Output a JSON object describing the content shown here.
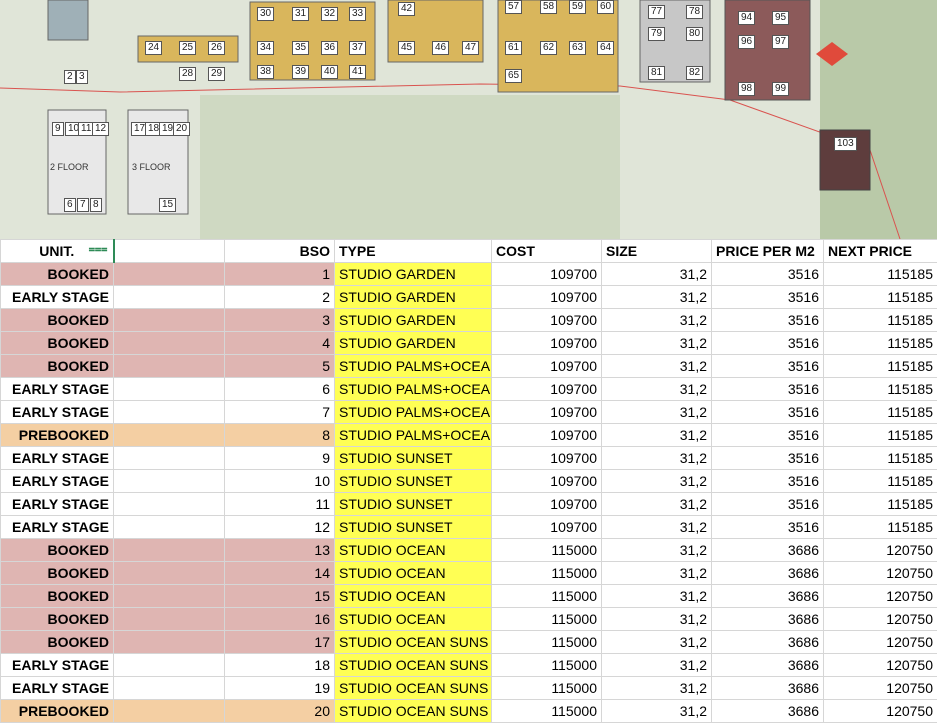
{
  "map": {
    "floor_labels": [
      "2 FLOOR",
      "3 FLOOR"
    ],
    "units": [
      "2",
      "3",
      "6",
      "7",
      "8",
      "9",
      "10",
      "11",
      "12",
      "15",
      "17",
      "18",
      "19",
      "20",
      "24",
      "25",
      "26",
      "28",
      "29",
      "30",
      "31",
      "32",
      "33",
      "34",
      "35",
      "36",
      "37",
      "38",
      "39",
      "40",
      "41",
      "42",
      "45",
      "46",
      "47",
      "57",
      "58",
      "59",
      "60",
      "61",
      "62",
      "63",
      "64",
      "65",
      "77",
      "78",
      "79",
      "80",
      "81",
      "82",
      "94",
      "95",
      "96",
      "97",
      "98",
      "99",
      "103"
    ]
  },
  "sheet": {
    "headers": {
      "unit": "UNIT.",
      "blank": "",
      "bso": "BSO",
      "type": "TYPE",
      "cost": "COST",
      "size": "SIZE",
      "price_m2": "PRICE PER M2",
      "next_price": "NEXT PRICE"
    },
    "status_colors": {
      "BOOKED": "#dfb5b2",
      "PREBOOKED": "#f4cfa3",
      "EARLY STAGE": "#ffffff",
      "type_highlight": "#ffff54"
    },
    "rows": [
      {
        "unit": "BOOKED",
        "bso": "1",
        "type": "STUDIO GARDEN",
        "cost": "109700",
        "size": "31,2",
        "price_m2": "3516",
        "next_price": "115185"
      },
      {
        "unit": "EARLY STAGE",
        "bso": "2",
        "type": "STUDIO GARDEN",
        "cost": "109700",
        "size": "31,2",
        "price_m2": "3516",
        "next_price": "115185"
      },
      {
        "unit": "BOOKED",
        "bso": "3",
        "type": "STUDIO GARDEN",
        "cost": "109700",
        "size": "31,2",
        "price_m2": "3516",
        "next_price": "115185"
      },
      {
        "unit": "BOOKED",
        "bso": "4",
        "type": "STUDIO GARDEN",
        "cost": "109700",
        "size": "31,2",
        "price_m2": "3516",
        "next_price": "115185"
      },
      {
        "unit": "BOOKED",
        "bso": "5",
        "type": "STUDIO PALMS+OCEA",
        "cost": "109700",
        "size": "31,2",
        "price_m2": "3516",
        "next_price": "115185"
      },
      {
        "unit": "EARLY STAGE",
        "bso": "6",
        "type": "STUDIO PALMS+OCEA",
        "cost": "109700",
        "size": "31,2",
        "price_m2": "3516",
        "next_price": "115185"
      },
      {
        "unit": "EARLY STAGE",
        "bso": "7",
        "type": "STUDIO PALMS+OCEA",
        "cost": "109700",
        "size": "31,2",
        "price_m2": "3516",
        "next_price": "115185"
      },
      {
        "unit": "PREBOOKED",
        "bso": "8",
        "type": "STUDIO PALMS+OCEA",
        "cost": "109700",
        "size": "31,2",
        "price_m2": "3516",
        "next_price": "115185"
      },
      {
        "unit": "EARLY STAGE",
        "bso": "9",
        "type": "STUDIO SUNSET",
        "cost": "109700",
        "size": "31,2",
        "price_m2": "3516",
        "next_price": "115185"
      },
      {
        "unit": "EARLY STAGE",
        "bso": "10",
        "type": "STUDIO SUNSET",
        "cost": "109700",
        "size": "31,2",
        "price_m2": "3516",
        "next_price": "115185"
      },
      {
        "unit": "EARLY STAGE",
        "bso": "11",
        "type": "STUDIO SUNSET",
        "cost": "109700",
        "size": "31,2",
        "price_m2": "3516",
        "next_price": "115185"
      },
      {
        "unit": "EARLY STAGE",
        "bso": "12",
        "type": "STUDIO SUNSET",
        "cost": "109700",
        "size": "31,2",
        "price_m2": "3516",
        "next_price": "115185"
      },
      {
        "unit": "BOOKED",
        "bso": "13",
        "type": "STUDIO OCEAN",
        "cost": "115000",
        "size": "31,2",
        "price_m2": "3686",
        "next_price": "120750"
      },
      {
        "unit": "BOOKED",
        "bso": "14",
        "type": "STUDIO OCEAN",
        "cost": "115000",
        "size": "31,2",
        "price_m2": "3686",
        "next_price": "120750"
      },
      {
        "unit": "BOOKED",
        "bso": "15",
        "type": "STUDIO OCEAN",
        "cost": "115000",
        "size": "31,2",
        "price_m2": "3686",
        "next_price": "120750"
      },
      {
        "unit": "BOOKED",
        "bso": "16",
        "type": "STUDIO OCEAN",
        "cost": "115000",
        "size": "31,2",
        "price_m2": "3686",
        "next_price": "120750"
      },
      {
        "unit": "BOOKED",
        "bso": "17",
        "type": "STUDIO OCEAN SUNS",
        "cost": "115000",
        "size": "31,2",
        "price_m2": "3686",
        "next_price": "120750"
      },
      {
        "unit": "EARLY STAGE",
        "bso": "18",
        "type": "STUDIO OCEAN SUNS",
        "cost": "115000",
        "size": "31,2",
        "price_m2": "3686",
        "next_price": "120750"
      },
      {
        "unit": "EARLY STAGE",
        "bso": "19",
        "type": "STUDIO OCEAN SUNS",
        "cost": "115000",
        "size": "31,2",
        "price_m2": "3686",
        "next_price": "120750"
      },
      {
        "unit": "PREBOOKED",
        "bso": "20",
        "type": "STUDIO OCEAN SUNS",
        "cost": "115000",
        "size": "31,2",
        "price_m2": "3686",
        "next_price": "120750"
      }
    ]
  }
}
